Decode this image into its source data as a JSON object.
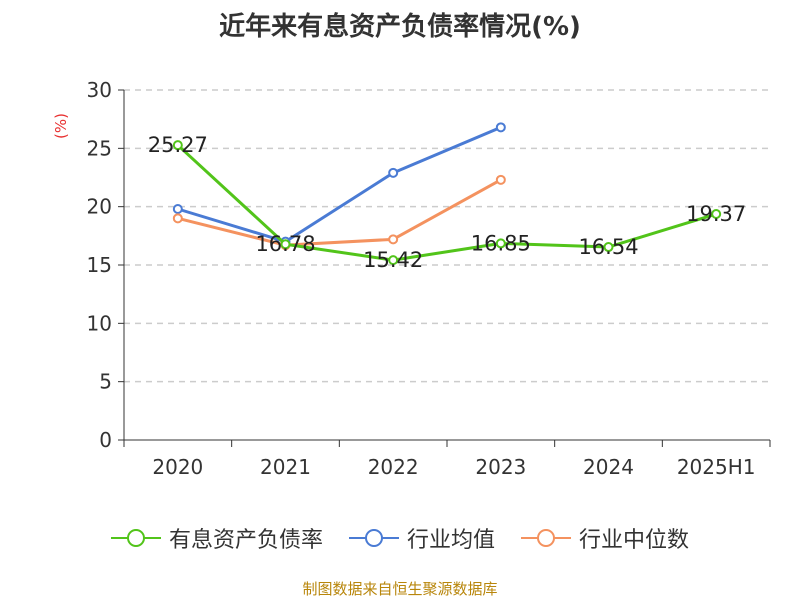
{
  "title": "近年来有息资产负债率情况(%)",
  "ylabel": "(%)",
  "source": "制图数据来自恒生聚源数据库",
  "chart_data": {
    "type": "line",
    "categories": [
      "2020",
      "2021",
      "2022",
      "2023",
      "2024",
      "2025H1"
    ],
    "ylim": [
      0,
      30
    ],
    "yticks": [
      0,
      5,
      10,
      15,
      20,
      25,
      30
    ],
    "grid": true,
    "legend_position": "bottom",
    "series": [
      {
        "name": "有息资产负债率",
        "color": "#52c41a",
        "values": [
          25.27,
          16.78,
          15.42,
          16.85,
          16.54,
          19.37
        ],
        "labels": [
          "25.27",
          "16.78",
          "15.42",
          "16.85",
          "16.54",
          "19.37"
        ],
        "show_labels": true
      },
      {
        "name": "行业均值",
        "color": "#4a7bd4",
        "values": [
          19.8,
          17.0,
          22.9,
          26.8,
          null,
          null
        ],
        "show_labels": false
      },
      {
        "name": "行业中位数",
        "color": "#f4925f",
        "values": [
          19.0,
          16.7,
          17.2,
          22.3,
          null,
          null
        ],
        "show_labels": false
      }
    ]
  }
}
